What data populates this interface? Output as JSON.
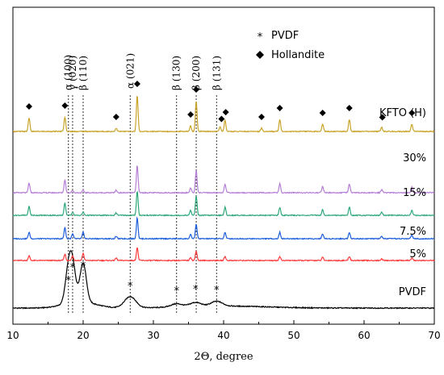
{
  "chart_data": {
    "type": "line",
    "xlabel": "2Θ, degree",
    "xlim": [
      10,
      70
    ],
    "xticks": [
      10,
      20,
      30,
      40,
      50,
      60,
      70
    ],
    "series": [
      {
        "name": "PVDF",
        "color": "#000000",
        "offset": 0,
        "peaks": [
          [
            17.9,
            38
          ],
          [
            18.5,
            42
          ],
          [
            20.0,
            48
          ],
          [
            26.7,
            14
          ],
          [
            33.3,
            4
          ],
          [
            36.0,
            5
          ],
          [
            39.0,
            6
          ]
        ]
      },
      {
        "name": "5%",
        "color": "#ff3b3b",
        "offset": 1,
        "peaks": [
          [
            12.3,
            6
          ],
          [
            17.4,
            8
          ],
          [
            18.5,
            6
          ],
          [
            20.0,
            9
          ],
          [
            24.7,
            3
          ],
          [
            27.7,
            16
          ],
          [
            35.3,
            4
          ],
          [
            36.1,
            12
          ],
          [
            40.2,
            5
          ],
          [
            48.0,
            5
          ],
          [
            54.1,
            4
          ],
          [
            57.9,
            5
          ],
          [
            62.5,
            2
          ],
          [
            66.8,
            3
          ]
        ]
      },
      {
        "name": "7.5%",
        "color": "#1f5fdc",
        "offset": 2,
        "peaks": [
          [
            12.3,
            8
          ],
          [
            17.4,
            14
          ],
          [
            18.5,
            6
          ],
          [
            20.0,
            8
          ],
          [
            24.7,
            3
          ],
          [
            27.7,
            26
          ],
          [
            35.3,
            5
          ],
          [
            36.1,
            18
          ],
          [
            40.2,
            8
          ],
          [
            48.0,
            8
          ],
          [
            54.1,
            6
          ],
          [
            57.9,
            8
          ],
          [
            62.5,
            3
          ],
          [
            66.8,
            5
          ]
        ]
      },
      {
        "name": "15%",
        "color": "#2ea87a",
        "offset": 3,
        "peaks": [
          [
            12.3,
            11
          ],
          [
            17.4,
            15
          ],
          [
            18.5,
            4
          ],
          [
            20.0,
            4
          ],
          [
            24.7,
            3
          ],
          [
            27.7,
            30
          ],
          [
            35.3,
            6
          ],
          [
            36.1,
            24
          ],
          [
            40.2,
            10
          ],
          [
            48.0,
            10
          ],
          [
            54.1,
            7
          ],
          [
            57.9,
            10
          ],
          [
            62.5,
            4
          ],
          [
            66.8,
            6
          ]
        ]
      },
      {
        "name": "30%",
        "color": "#b57ed6",
        "offset": 4,
        "peaks": [
          [
            12.3,
            12
          ],
          [
            17.4,
            16
          ],
          [
            18.5,
            3
          ],
          [
            20.0,
            3
          ],
          [
            24.7,
            3
          ],
          [
            27.7,
            34
          ],
          [
            35.3,
            6
          ],
          [
            36.1,
            28
          ],
          [
            40.2,
            11
          ],
          [
            48.0,
            11
          ],
          [
            54.1,
            8
          ],
          [
            57.9,
            11
          ],
          [
            62.5,
            4
          ],
          [
            66.8,
            7
          ]
        ]
      },
      {
        "name": "KFTO (H)",
        "color": "#c9a42a",
        "offset": 5,
        "peaks": [
          [
            12.3,
            17
          ],
          [
            17.4,
            18
          ],
          [
            24.7,
            4
          ],
          [
            27.7,
            45
          ],
          [
            35.3,
            7
          ],
          [
            36.1,
            38
          ],
          [
            39.5,
            6
          ],
          [
            40.2,
            14
          ],
          [
            45.4,
            4
          ],
          [
            48.0,
            15
          ],
          [
            54.1,
            9
          ],
          [
            57.9,
            15
          ],
          [
            62.5,
            5
          ],
          [
            66.8,
            9
          ]
        ]
      }
    ],
    "reference_lines": [
      {
        "x": 17.9,
        "label": "α (100)"
      },
      {
        "x": 18.5,
        "label": "γ (020)"
      },
      {
        "x": 20.0,
        "label": "β (110)"
      },
      {
        "x": 26.7,
        "label": "α (021)"
      },
      {
        "x": 33.3,
        "label": "β (130)"
      },
      {
        "x": 36.1,
        "label": "β (200)"
      },
      {
        "x": 39.0,
        "label": "β (131)"
      }
    ],
    "hollandite_markers": [
      12.3,
      17.4,
      24.7,
      27.7,
      35.3,
      36.1,
      39.7,
      40.3,
      45.4,
      48.0,
      54.1,
      57.9,
      62.6,
      66.8
    ],
    "pvdf_markers": [
      17.9,
      18.5,
      20.0,
      26.7,
      33.3,
      36.0,
      39.0
    ],
    "legend": {
      "placement": "top-center",
      "entries": [
        {
          "symbol": "*",
          "label": "PVDF"
        },
        {
          "symbol": "◆",
          "label": "Hollandite"
        }
      ]
    },
    "grid": false
  }
}
